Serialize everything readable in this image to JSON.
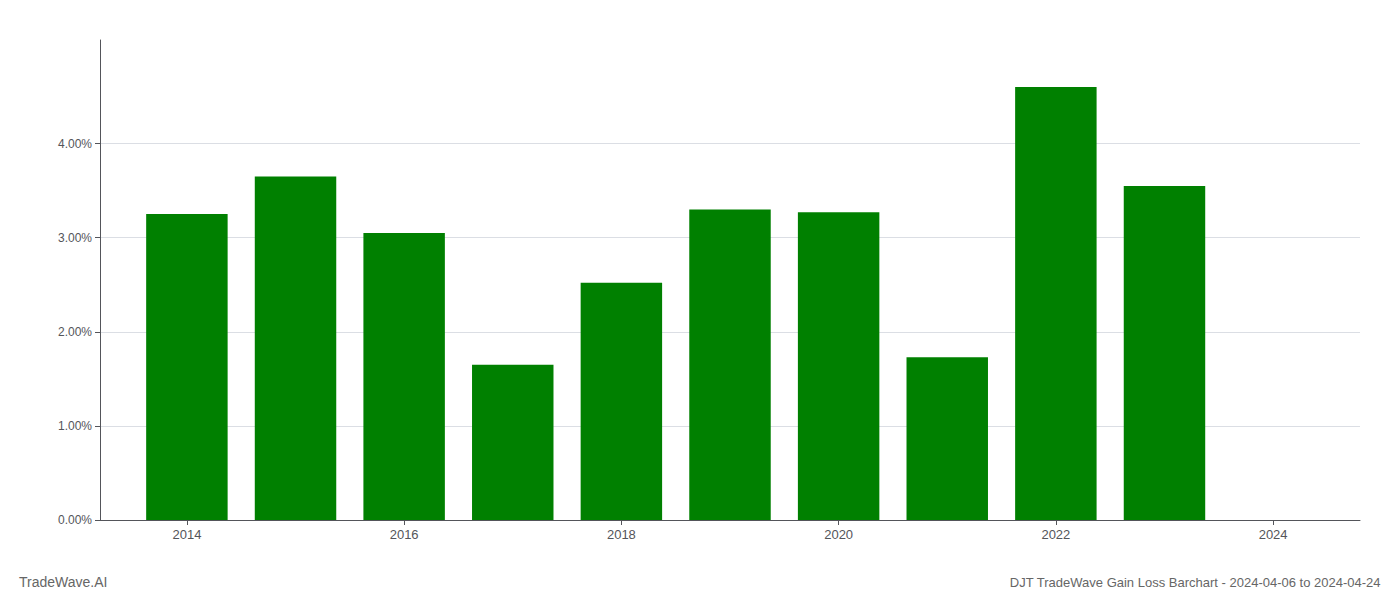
{
  "chart_data": {
    "type": "bar",
    "title": "DJT TradeWave Gain Loss Barchart - 2024-04-06 to 2024-04-24",
    "annotations": [
      "TradeWave.AI"
    ],
    "x": [
      2014,
      2015,
      2016,
      2017,
      2018,
      2019,
      2020,
      2021,
      2022,
      2023
    ],
    "values": [
      0.0325,
      0.0365,
      0.0305,
      0.0165,
      0.0252,
      0.033,
      0.0327,
      0.0173,
      0.046,
      0.0355
    ],
    "color": "#008000",
    "xlim": [
      2013.2,
      2024.8
    ],
    "xticks": [
      2014,
      2016,
      2018,
      2020,
      2022,
      2024
    ],
    "ylim": [
      0.0,
      0.051
    ],
    "yticks": [
      {
        "value": 0.0,
        "label": "0.00%"
      },
      {
        "value": 0.01,
        "label": "1.00%"
      },
      {
        "value": 0.02,
        "label": "2.00%"
      },
      {
        "value": 0.03,
        "label": "3.00%"
      },
      {
        "value": 0.04,
        "label": "4.00%"
      }
    ],
    "grid": true
  }
}
